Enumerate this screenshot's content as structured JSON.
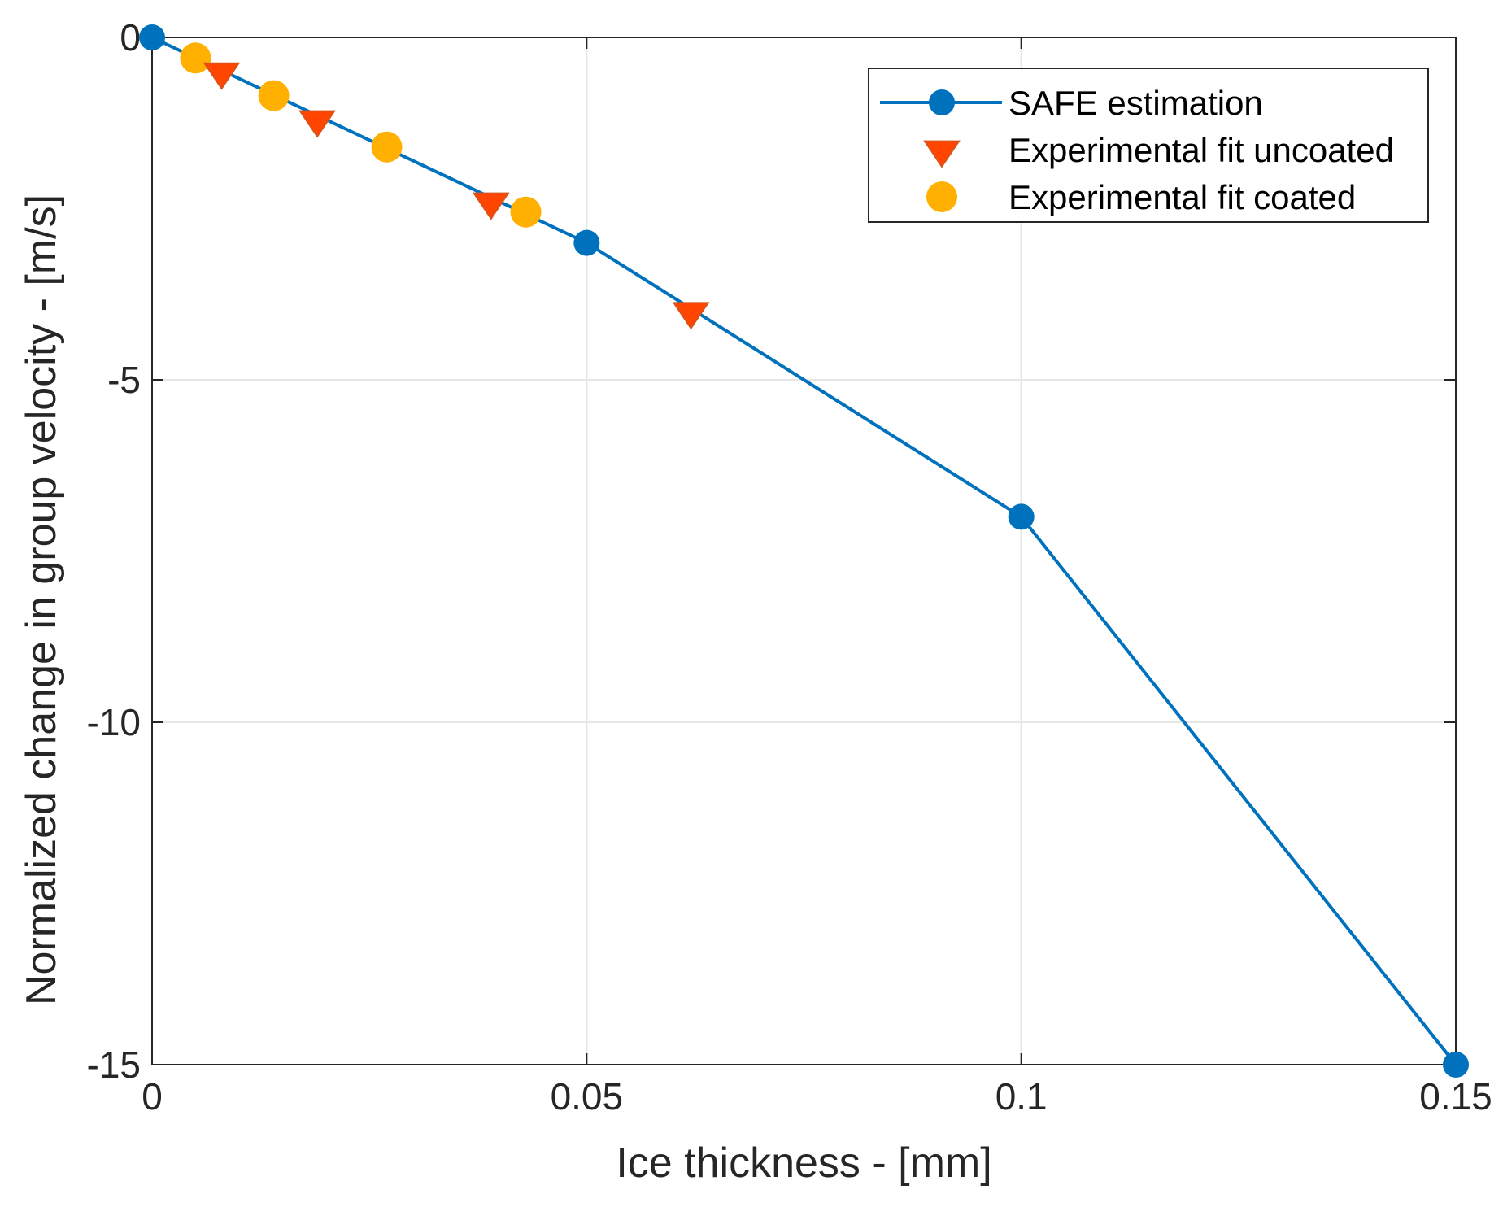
{
  "chart_data": {
    "type": "line",
    "xlabel": "Ice thickness - [mm]",
    "ylabel": "Normalized change in group velocity - [m/s]",
    "xlim": [
      0,
      0.15
    ],
    "ylim": [
      -15,
      0
    ],
    "grid": true,
    "xticks": [
      0,
      0.05,
      0.1,
      0.15
    ],
    "xtick_labels": [
      "0",
      "0.05",
      "0.1",
      "0.15"
    ],
    "yticks": [
      0,
      -5,
      -10,
      -15
    ],
    "ytick_labels": [
      "0",
      "-5",
      "-10",
      "-15"
    ],
    "legend_position": "top-right",
    "series": [
      {
        "name": "SAFE estimation",
        "style": "line-circle",
        "color": "#0072BD",
        "x": [
          0,
          0.05,
          0.1,
          0.15
        ],
        "y": [
          0,
          -3.0,
          -7.0,
          -15.0
        ]
      },
      {
        "name": "Experimental fit uncoated",
        "style": "triangle-down",
        "color": "#FF4500",
        "edge_color": "#D95319",
        "x": [
          0.008,
          0.019,
          0.039,
          0.062
        ],
        "y": [
          -0.5,
          -1.2,
          -2.4,
          -4.0
        ]
      },
      {
        "name": "Experimental fit coated",
        "style": "circle",
        "color": "#FFB000",
        "x": [
          0.005,
          0.014,
          0.027,
          0.043
        ],
        "y": [
          -0.3,
          -0.85,
          -1.6,
          -2.55
        ]
      }
    ]
  }
}
